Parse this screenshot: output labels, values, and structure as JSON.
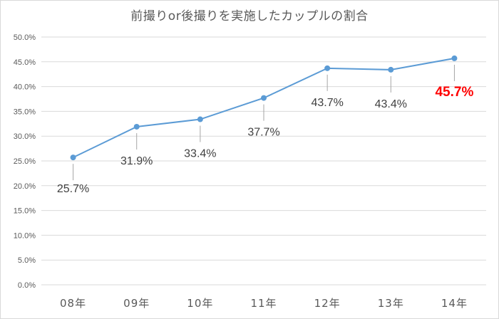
{
  "chart_data": {
    "type": "line",
    "title": "前撮りor後撮りを実施したカップルの割合",
    "xlabel": "",
    "ylabel": "",
    "categories": [
      "08年",
      "09年",
      "10年",
      "11年",
      "12年",
      "13年",
      "14年"
    ],
    "series": [
      {
        "values": [
          25.7,
          31.9,
          33.4,
          37.7,
          43.7,
          43.4,
          45.7
        ]
      }
    ],
    "data_labels": [
      "25.7%",
      "31.9%",
      "33.4%",
      "37.7%",
      "43.7%",
      "43.4%",
      "45.7%"
    ],
    "highlight_index": 6,
    "ylim": [
      0,
      50
    ],
    "ytick_values": [
      0,
      5,
      10,
      15,
      20,
      25,
      30,
      35,
      40,
      45,
      50
    ],
    "ytick_labels": [
      "0.0%",
      "5.0%",
      "10.0%",
      "15.0%",
      "20.0%",
      "25.0%",
      "30.0%",
      "35.0%",
      "40.0%",
      "45.0%",
      "50.0%"
    ],
    "grid": true,
    "legend": "none",
    "colors": {
      "line": "#5b9bd5",
      "marker": "#5b9bd5",
      "highlight_label": "#ff0000",
      "label": "#404040",
      "tick": "#595959",
      "grid": "#d9d9d9",
      "leader": "#a6a6a6"
    }
  }
}
